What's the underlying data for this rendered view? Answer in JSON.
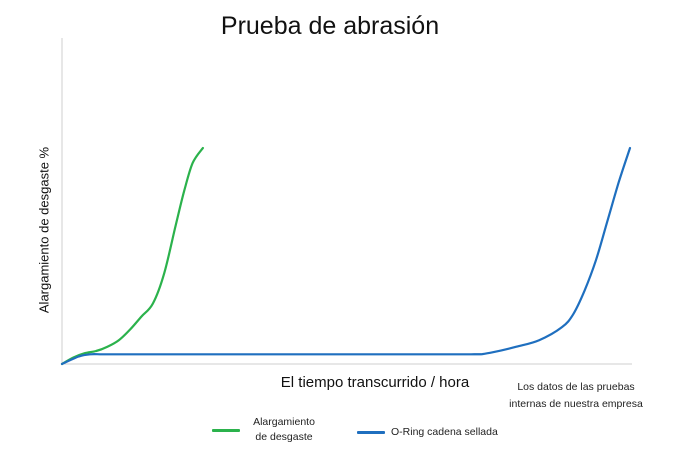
{
  "chart_data": {
    "type": "line",
    "title": "Prueba de abrasión",
    "xlabel": "El tiempo transcurrido / hora",
    "ylabel": "Alargamiento de desgaste %",
    "annotation": "Los datos de las pruebas internas de nuestra empresa",
    "xlim": [
      0,
      100
    ],
    "ylim": [
      0,
      100
    ],
    "grid": false,
    "legend_position": "bottom",
    "series": [
      {
        "name": "Alargamiento de desgaste",
        "color": "#2bb24c",
        "x": [
          0,
          2,
          4,
          6,
          8,
          10,
          12,
          14,
          16,
          18,
          20,
          21.5,
          23,
          24.8
        ],
        "y": [
          0,
          3,
          5,
          6,
          8,
          11,
          16,
          22,
          28,
          42,
          64,
          80,
          93,
          100
        ]
      },
      {
        "name": "O-Ring cadena sellada",
        "color": "#1f6fbf",
        "x": [
          0,
          3,
          5,
          7,
          10,
          30,
          50,
          70,
          72,
          74,
          76,
          80,
          84,
          88,
          90,
          92,
          94,
          96,
          98,
          100
        ],
        "y": [
          0,
          3.5,
          4.5,
          4.5,
          4.5,
          4.5,
          4.5,
          4.5,
          4.5,
          4.6,
          5.5,
          8,
          11,
          17,
          23,
          34,
          48,
          66,
          84,
          100
        ]
      }
    ]
  }
}
